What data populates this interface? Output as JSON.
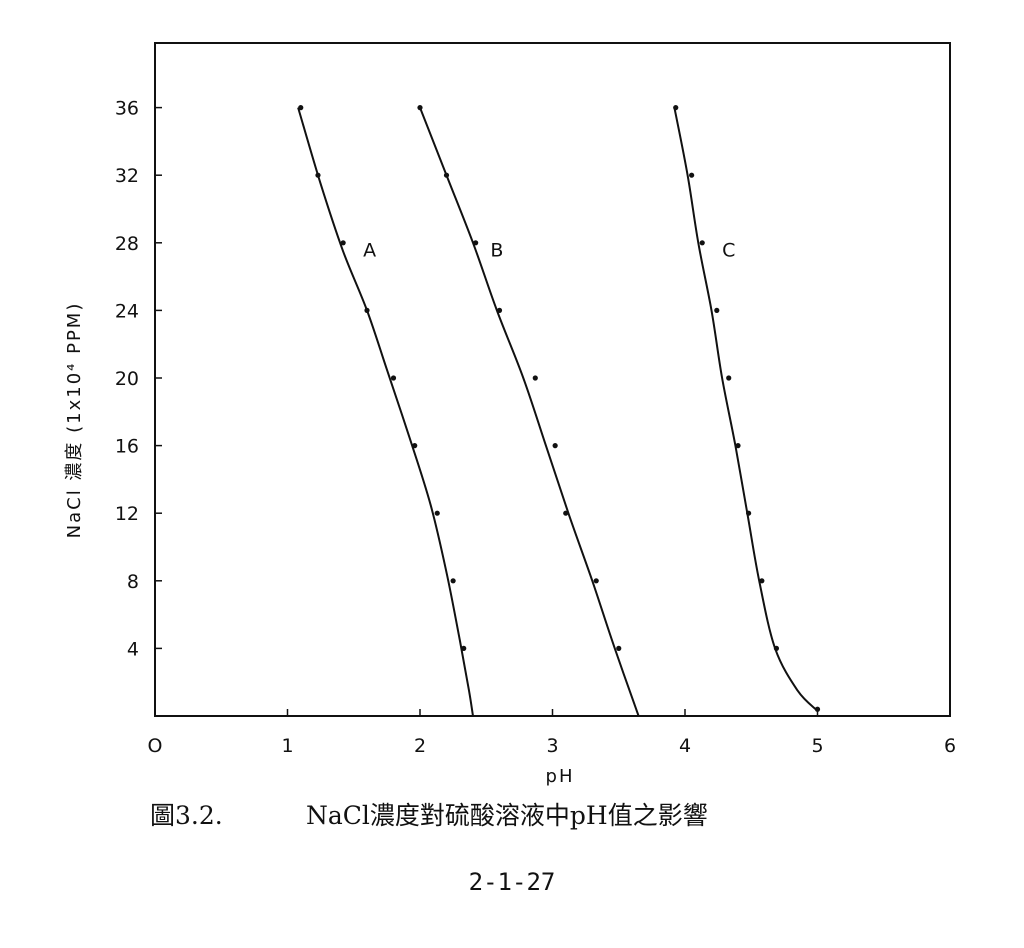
{
  "chart_data": {
    "type": "line",
    "xlabel": "pH",
    "ylabel": "NaCl 濃度 (1x10⁴ PPM)",
    "xlim": [
      0,
      6
    ],
    "ylim": [
      0,
      40
    ],
    "x_ticks": [
      "O",
      "1",
      "2",
      "3",
      "4",
      "5",
      "6"
    ],
    "y_ticks": [
      "4",
      "8",
      "12",
      "16",
      "20",
      "24",
      "28",
      "32",
      "36"
    ],
    "grid": false,
    "legend": "none",
    "series": [
      {
        "name": "A",
        "points": [
          [
            1.1,
            36
          ],
          [
            1.23,
            32
          ],
          [
            1.42,
            28
          ],
          [
            1.6,
            24
          ],
          [
            1.8,
            20
          ],
          [
            1.96,
            16
          ],
          [
            2.13,
            12
          ],
          [
            2.25,
            8
          ],
          [
            2.33,
            4
          ]
        ],
        "curve": [
          [
            1.08,
            36
          ],
          [
            1.25,
            31.5
          ],
          [
            1.42,
            27.5
          ],
          [
            1.6,
            24
          ],
          [
            1.75,
            20.5
          ],
          [
            1.92,
            16.5
          ],
          [
            2.08,
            12.5
          ],
          [
            2.2,
            8.5
          ],
          [
            2.3,
            4.5
          ],
          [
            2.37,
            1.5
          ],
          [
            2.4,
            0
          ]
        ]
      },
      {
        "name": "B",
        "points": [
          [
            2.0,
            36
          ],
          [
            2.2,
            32
          ],
          [
            2.42,
            28
          ],
          [
            2.6,
            24
          ],
          [
            2.87,
            20
          ],
          [
            3.02,
            16
          ],
          [
            3.1,
            12
          ],
          [
            3.33,
            8
          ],
          [
            3.5,
            4
          ]
        ],
        "curve": [
          [
            2.0,
            36
          ],
          [
            2.2,
            32
          ],
          [
            2.4,
            28
          ],
          [
            2.58,
            24
          ],
          [
            2.78,
            20
          ],
          [
            2.95,
            16
          ],
          [
            3.12,
            12
          ],
          [
            3.3,
            8
          ],
          [
            3.47,
            4
          ],
          [
            3.65,
            0
          ]
        ]
      },
      {
        "name": "C",
        "points": [
          [
            3.93,
            36
          ],
          [
            4.05,
            32
          ],
          [
            4.13,
            28
          ],
          [
            4.24,
            24
          ],
          [
            4.33,
            20
          ],
          [
            4.4,
            16
          ],
          [
            4.48,
            12
          ],
          [
            4.58,
            8
          ],
          [
            4.69,
            4
          ],
          [
            5.0,
            0.4
          ]
        ],
        "curve": [
          [
            3.92,
            36
          ],
          [
            4.02,
            32
          ],
          [
            4.1,
            28
          ],
          [
            4.2,
            24
          ],
          [
            4.28,
            20
          ],
          [
            4.38,
            16
          ],
          [
            4.47,
            12
          ],
          [
            4.56,
            8
          ],
          [
            4.68,
            4
          ],
          [
            4.85,
            1.5
          ],
          [
            5.0,
            0.3
          ]
        ]
      }
    ]
  },
  "caption": {
    "number": "圖3.2.",
    "text": "NaCl濃度對硫酸溶液中pH值之影響"
  },
  "page_number": "2-1-27",
  "colors": {
    "ink": "#111111",
    "background": "#ffffff"
  }
}
